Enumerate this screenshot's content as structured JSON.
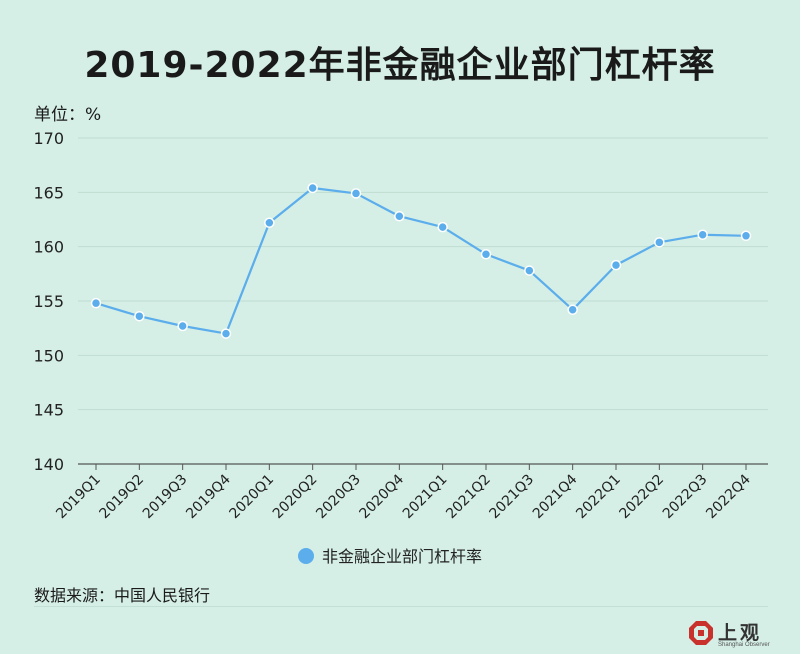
{
  "chart_data": {
    "type": "line",
    "title": "2019-2022年非金融企业部门杠杆率",
    "unit_label": "单位：%",
    "categories": [
      "2019Q1",
      "2019Q2",
      "2019Q3",
      "2019Q4",
      "2020Q1",
      "2020Q2",
      "2020Q3",
      "2020Q4",
      "2021Q1",
      "2021Q2",
      "2021Q3",
      "2021Q4",
      "2022Q1",
      "2022Q2",
      "2022Q3",
      "2022Q4"
    ],
    "series": [
      {
        "name": "非金融企业部门杠杆率",
        "color": "#5badec",
        "values": [
          154.8,
          153.6,
          152.7,
          152.0,
          162.2,
          165.4,
          164.9,
          162.8,
          161.8,
          159.3,
          157.8,
          154.2,
          158.3,
          160.4,
          161.1,
          161.0
        ]
      }
    ],
    "ylim": [
      140,
      170
    ],
    "yticks": [
      140,
      145,
      150,
      155,
      160,
      165,
      170
    ],
    "grid": true,
    "legend_position": "bottom"
  },
  "source": "数据来源：中国人民银行",
  "logo": {
    "text": "上观",
    "subtext": "Shanghai Observer"
  }
}
